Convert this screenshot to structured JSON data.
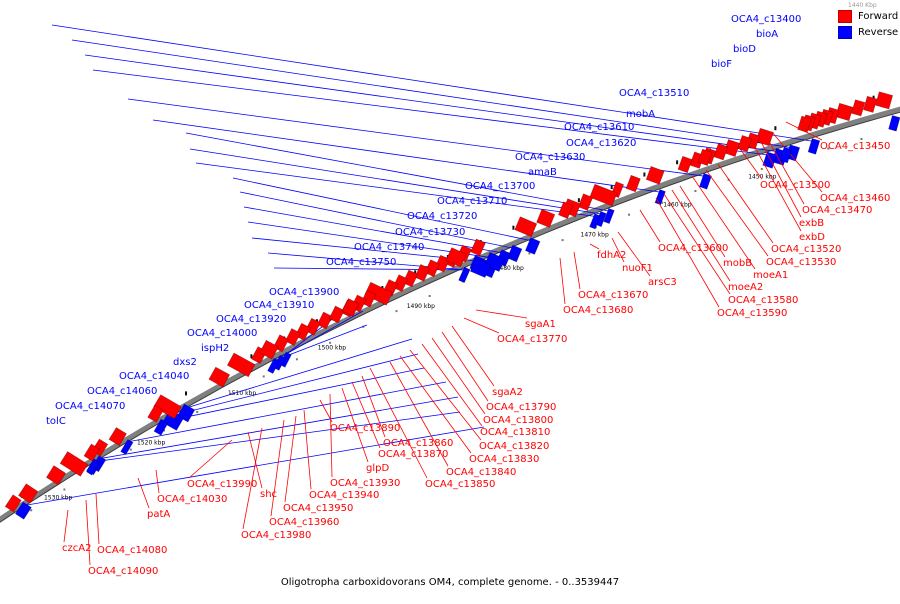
{
  "legend": {
    "forward_label": "Forward",
    "reverse_label": "Reverse",
    "forward_color": "#ff0000",
    "reverse_color": "#0000ff"
  },
  "caption": "Oligotropha carboxidovorans OM4, complete genome. - 0..3539447",
  "top_scale_label": "1440 Kbp",
  "backbone_color": "#808080",
  "scale_ticks": [
    "1450 kbp",
    "1460 kbp",
    "1470 kbp",
    "1480 kbp",
    "1490 kbp",
    "1500 kbp",
    "1510 kbp",
    "1520 kbp",
    "1530 kbp"
  ],
  "reverse_genes": [
    "OCA4_c13400",
    "bioA",
    "bioD",
    "bioF",
    "OCA4_c13510",
    "mobA",
    "OCA4_c13610",
    "OCA4_c13620",
    "OCA4_c13630",
    "amaB",
    "OCA4_c13700",
    "OCA4_c13710",
    "OCA4_c13720",
    "OCA4_c13730",
    "OCA4_c13740",
    "OCA4_c13750",
    "OCA4_c13900",
    "OCA4_c13910",
    "OCA4_c13920",
    "OCA4_c14000",
    "ispH2",
    "dxs2",
    "OCA4_c14040",
    "OCA4_c14060",
    "OCA4_c14070",
    "tolC"
  ],
  "forward_genes": [
    "OCA4_c13450",
    "OCA4_c13460",
    "OCA4_c13470",
    "exbB",
    "exbD",
    "OCA4_c13500",
    "OCA4_c13520",
    "OCA4_c13530",
    "moeA1",
    "mobB",
    "moeA2",
    "OCA4_c13580",
    "OCA4_c13590",
    "OCA4_c13600",
    "arsC3",
    "nuoF1",
    "fdhA2",
    "OCA4_c13670",
    "OCA4_c13680",
    "sgaA1",
    "OCA4_c13770",
    "sgaA2",
    "OCA4_c13790",
    "OCA4_c13800",
    "OCA4_c13810",
    "OCA4_c13820",
    "OCA4_c13830",
    "OCA4_c13840",
    "OCA4_c13850",
    "OCA4_c13860",
    "OCA4_c13870",
    "OCA4_c13890",
    "glpD",
    "OCA4_c13930",
    "OCA4_c13940",
    "OCA4_c13950",
    "OCA4_c13960",
    "OCA4_c13980",
    "OCA4_c13990",
    "shc",
    "OCA4_c14030",
    "patA",
    "OCA4_c14080",
    "OCA4_c14090",
    "czcA2"
  ]
}
